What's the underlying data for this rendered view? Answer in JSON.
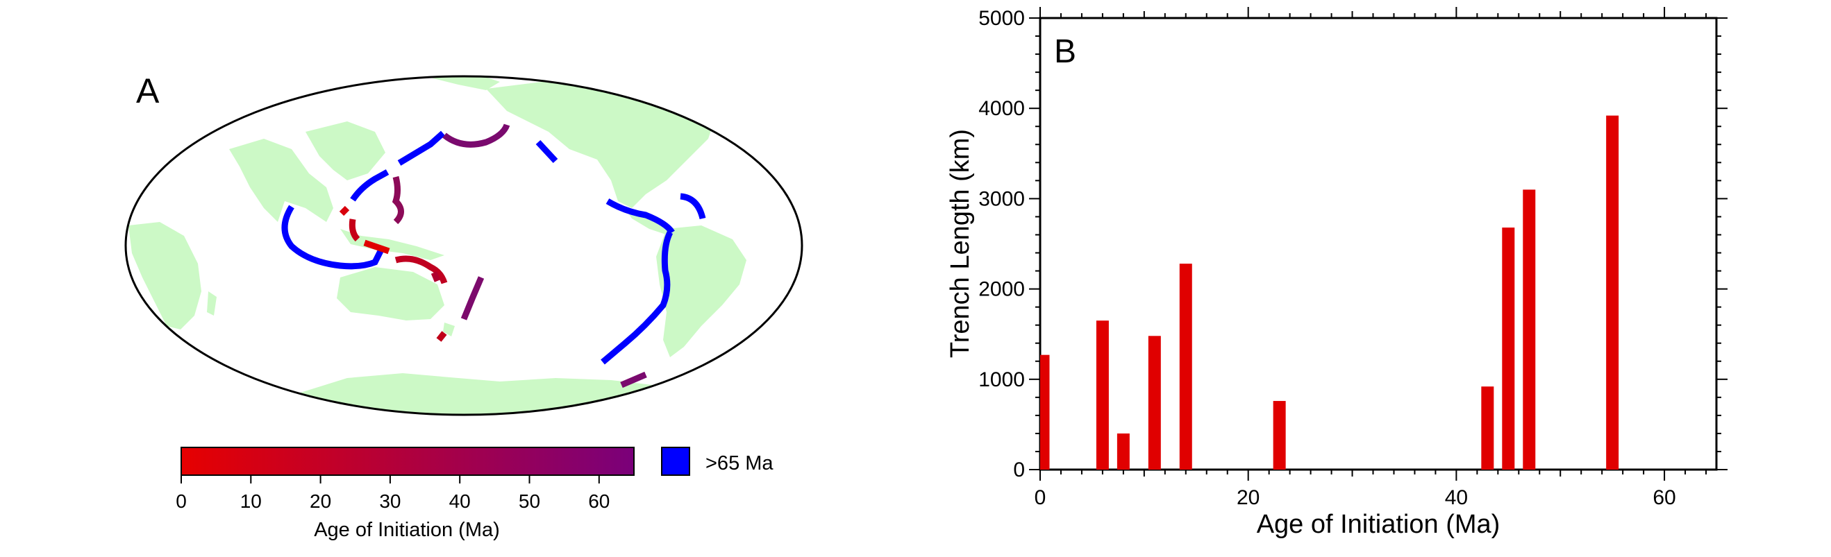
{
  "panels": {
    "a_label": "A",
    "b_label": "B"
  },
  "colors": {
    "land": "#ccf9c6",
    "young_start": "#e60000",
    "young_end": "#7a007a",
    "old": "#0000ff",
    "bar": "#e00000",
    "background": "#ffffff"
  },
  "map_legend": {
    "colorbar_ticks": [
      "0",
      "10",
      "20",
      "30",
      "40",
      "50",
      "60"
    ],
    "colorbar_label": "Age of Initiation (Ma)",
    "old_label": ">65 Ma"
  },
  "chart_data": {
    "type": "bar",
    "xlabel": "Age of Initiation (Ma)",
    "ylabel": "Trench Length (km)",
    "xlim": [
      0,
      65
    ],
    "ylim": [
      0,
      5000
    ],
    "x_ticks": [
      0,
      20,
      40,
      60
    ],
    "y_ticks": [
      0,
      1000,
      2000,
      3000,
      4000,
      5000
    ],
    "grid": false,
    "bar_width": 1.2,
    "bars": [
      {
        "x": 0.3,
        "value": 1270
      },
      {
        "x": 6.0,
        "value": 1650
      },
      {
        "x": 8.0,
        "value": 400
      },
      {
        "x": 11.0,
        "value": 1480
      },
      {
        "x": 14.0,
        "value": 2280
      },
      {
        "x": 23.0,
        "value": 760
      },
      {
        "x": 43.0,
        "value": 920
      },
      {
        "x": 45.0,
        "value": 2680
      },
      {
        "x": 47.0,
        "value": 3100
      },
      {
        "x": 55.0,
        "value": 3920
      }
    ]
  }
}
